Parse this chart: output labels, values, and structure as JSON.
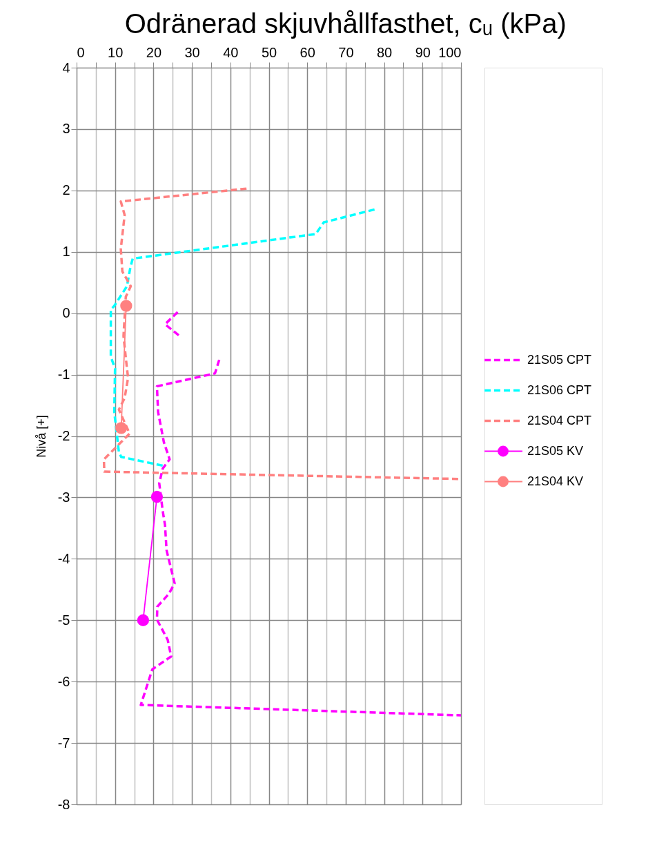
{
  "chart_data": {
    "type": "line",
    "title": "Odränerad skjuvhållfasthet, cᵤ (kPa)",
    "ylabel": "Nivå [+]",
    "xlim": [
      0,
      100
    ],
    "xticks": [
      0,
      {
        "value": 5,
        "label": null
      },
      10,
      {
        "value": 15,
        "label": null
      },
      20,
      {
        "value": 25,
        "label": null
      },
      30,
      {
        "value": 35,
        "label": null
      },
      40,
      {
        "value": 45,
        "label": null
      },
      50,
      {
        "value": 55,
        "label": null
      },
      60,
      {
        "value": 65,
        "label": null
      },
      70,
      {
        "value": 75,
        "label": null
      },
      80,
      {
        "value": 85,
        "label": null
      },
      90,
      {
        "value": 95,
        "label": null
      },
      100
    ],
    "ylim": [
      -8,
      4
    ],
    "yticks": [
      4,
      3,
      2,
      1,
      0,
      -1,
      -2,
      -3,
      -4,
      -5,
      -6,
      -7,
      -8
    ],
    "grid": true,
    "legend": "right",
    "series": [
      {
        "name": "21S05 CPT",
        "color": "#ff00ff",
        "line_style": "dashed",
        "marker": "none",
        "x": [
          26.3,
          23.0,
          24.2,
          27.2,
          null,
          37.1,
          36.0,
          20.9,
          21.2,
          22.7,
          24.2,
          22.4,
          21.5,
          22.4,
          23.0,
          23.4,
          25.5,
          24.0,
          21.0,
          20.9,
          23.7,
          24.6,
          19.7,
          16.7,
          100
        ],
        "values": [
          0.02,
          -0.18,
          -0.24,
          -0.39,
          null,
          -0.76,
          -0.98,
          -1.19,
          -1.61,
          -2.1,
          -2.38,
          -2.53,
          -2.77,
          -3.22,
          -3.45,
          -3.86,
          -4.4,
          -4.57,
          -4.78,
          -4.99,
          -5.32,
          -5.59,
          -5.8,
          -6.38,
          -6.55
        ]
      },
      {
        "name": "21S06 CPT",
        "color": "#00ffff",
        "line_style": "dashed",
        "marker": "none",
        "x": [
          77.5,
          64.3,
          62.2,
          14.6,
          14.0,
          13.1,
          9.8,
          8.9,
          8.9,
          10.0,
          9.8,
          11.0,
          11.6,
          23.0
        ],
        "values": [
          1.69,
          1.48,
          1.29,
          0.89,
          0.75,
          0.44,
          0.12,
          0.06,
          -0.71,
          -0.9,
          -1.61,
          -2.26,
          -2.34,
          -2.49
        ]
      },
      {
        "name": "21S04 CPT",
        "color": "#ff8080",
        "line_style": "dashed",
        "marker": "none",
        "x": [
          44.2,
          11.5,
          12.5,
          11.5,
          11.9,
          14.1,
          12.8,
          12.2,
          13.1,
          13.4,
          12.5,
          11.0,
          13.8,
          7.1,
          7.2,
          100
        ],
        "values": [
          2.03,
          1.82,
          1.6,
          1.05,
          0.68,
          0.44,
          0.27,
          -0.37,
          -0.9,
          -1.05,
          -1.38,
          -1.57,
          -1.96,
          -2.38,
          -2.58,
          -2.7
        ]
      },
      {
        "name": "21S05 KV",
        "color": "#ff00ff",
        "line_style": "solid",
        "marker": "circle",
        "x": [
          20.9,
          17.3
        ],
        "values": [
          -2.99,
          -5.0
        ]
      },
      {
        "name": "21S04 KV",
        "color": "#ff8080",
        "line_style": "solid",
        "marker": "circle",
        "x": [
          12.9,
          11.6
        ],
        "values": [
          0.12,
          -1.87
        ]
      }
    ]
  }
}
